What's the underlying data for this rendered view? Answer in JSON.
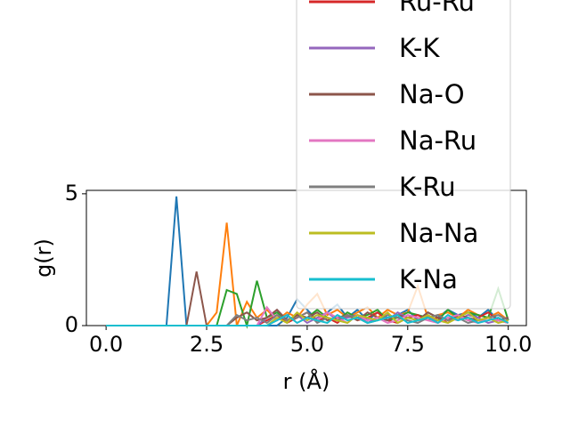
{
  "chart_data": {
    "type": "line",
    "ylabel": "g(r)",
    "xlabel": "r (Å)",
    "x": [
      0,
      0.25,
      0.5,
      0.75,
      1,
      1.25,
      1.5,
      1.75,
      2,
      2.25,
      2.5,
      2.75,
      3,
      3.25,
      3.5,
      3.75,
      4,
      4.25,
      4.5,
      4.75,
      5,
      5.25,
      5.5,
      5.75,
      6,
      6.25,
      6.5,
      6.75,
      7,
      7.25,
      7.5,
      7.75,
      8,
      8.25,
      8.5,
      8.75,
      9,
      9.25,
      9.5,
      9.75,
      10
    ],
    "xlim": [
      -0.49,
      10.45
    ],
    "ylim": [
      0,
      5.13
    ],
    "xticks": [
      {
        "value": 0,
        "label": "0.0"
      },
      {
        "value": 2.5,
        "label": "2.5"
      },
      {
        "value": 5,
        "label": "5.0"
      },
      {
        "value": 7.5,
        "label": "7.5"
      },
      {
        "value": 10,
        "label": "10.0"
      }
    ],
    "yticks": [
      0,
      5
    ],
    "series": [
      {
        "color": "#1f77b4",
        "values": [
          0,
          0,
          0,
          0,
          0,
          0,
          0,
          4.9,
          0,
          0,
          0,
          0,
          0,
          0,
          0,
          0,
          0,
          0,
          0.3,
          1.0,
          0.6,
          0.2,
          0.5,
          0.8,
          0.3,
          0.6,
          0.2,
          0.5,
          0.3,
          0.4,
          0.6,
          0.2,
          0.5,
          0.3,
          0.6,
          0.4,
          0.5,
          0.3,
          0.6,
          0.2,
          0.3
        ]
      },
      {
        "color": "#ff7f0e",
        "values": [
          0,
          0,
          0,
          0,
          0,
          0,
          0,
          0,
          0,
          0,
          0,
          0.5,
          3.9,
          0,
          0.9,
          0.3,
          0.6,
          0.2,
          0.5,
          0.3,
          0.8,
          1.2,
          0.4,
          0.6,
          0.3,
          0.5,
          0.7,
          0.3,
          0.6,
          0.4,
          0.5,
          1.5,
          0.3,
          0.4,
          0.5,
          0.3,
          0.6,
          0.4,
          0.3,
          0.5,
          0.2
        ]
      },
      {
        "color": "#2ca02c",
        "values": [
          0,
          0,
          0,
          0,
          0,
          0,
          0,
          0,
          0,
          0,
          0,
          0,
          1.35,
          1.2,
          0,
          1.7,
          0.3,
          0.5,
          0.2,
          0.4,
          0.3,
          0.6,
          0.3,
          0.2,
          0.5,
          0.3,
          0.4,
          0.6,
          0.2,
          0.3,
          0.5,
          0.4,
          0.3,
          0.2,
          0.6,
          0.3,
          0.5,
          0.4,
          0.3,
          1.4,
          0.2
        ]
      },
      {
        "name": "Ru-Ru",
        "color": "#d62728",
        "values": [
          0,
          0,
          0,
          0,
          0,
          0,
          0,
          0,
          0,
          0,
          0,
          0,
          0,
          0,
          0,
          0,
          0.2,
          0.4,
          0.1,
          0.3,
          0.5,
          0.2,
          0.3,
          0.1,
          0.4,
          0.2,
          0.3,
          0.5,
          0.2,
          0.1,
          0.3,
          0.4,
          0.2,
          0.3,
          0.1,
          0.4,
          0.2,
          0.3,
          0.5,
          0.2,
          0.1
        ]
      },
      {
        "name": "K-K",
        "color": "#9467bd",
        "values": [
          0,
          0,
          0,
          0,
          0,
          0,
          0,
          0,
          0,
          0,
          0,
          0,
          0,
          0,
          0,
          0,
          0.3,
          0.6,
          0.2,
          0.4,
          0.1,
          0.3,
          0.5,
          0.2,
          0.3,
          0.4,
          0.1,
          0.3,
          0.2,
          0.5,
          0.3,
          0.2,
          0.4,
          0.1,
          0.3,
          0.2,
          0.4,
          0.3,
          0.1,
          0.2,
          0.3
        ]
      },
      {
        "name": "Na-O",
        "color": "#8c564b",
        "values": [
          0,
          0,
          0,
          0,
          0,
          0,
          0,
          0,
          0,
          2.05,
          0,
          0,
          0,
          0.3,
          0.5,
          0.2,
          0.3,
          0.6,
          0.2,
          0.4,
          0.3,
          0.5,
          0.2,
          0.3,
          0.4,
          0.2,
          0.5,
          0.3,
          0.2,
          0.4,
          0.3,
          0.2,
          0.5,
          0.3,
          0.2,
          0.4,
          0.3,
          0.2,
          0.3,
          0.2,
          0.3
        ]
      },
      {
        "name": "Na-Ru",
        "color": "#e377c2",
        "values": [
          0,
          0,
          0,
          0,
          0,
          0,
          0,
          0,
          0,
          0,
          0,
          0,
          0,
          0,
          0,
          0,
          0.7,
          0.2,
          0.4,
          0.1,
          0.3,
          0.2,
          0.5,
          0.3,
          0.1,
          0.4,
          0.2,
          0.3,
          0.1,
          0.2,
          0.4,
          0.3,
          0.2,
          0.1,
          0.3,
          0.4,
          0.2,
          0.1,
          0.3,
          0.2,
          0.1
        ]
      },
      {
        "name": "K-Ru",
        "color": "#7f7f7f",
        "values": [
          0,
          0,
          0,
          0,
          0,
          0,
          0,
          0,
          0,
          0,
          0,
          0,
          0,
          0.4,
          0.2,
          0.3,
          0.1,
          0.4,
          0.2,
          0.3,
          0.5,
          0.1,
          0.3,
          0.2,
          0.4,
          0.3,
          0.1,
          0.2,
          0.4,
          0.3,
          0.2,
          0.1,
          0.3,
          0.4,
          0.2,
          0.3,
          0.1,
          0.2,
          0.3,
          0.4,
          0.2
        ]
      },
      {
        "name": "Na-Na",
        "color": "#bcbd22",
        "values": [
          0,
          0,
          0,
          0,
          0,
          0,
          0,
          0,
          0,
          0,
          0,
          0,
          0,
          0,
          0,
          0,
          0,
          0.3,
          0.1,
          0.5,
          0.2,
          0.4,
          0.3,
          0.2,
          0.1,
          0.4,
          0.3,
          0.2,
          0.5,
          0.1,
          0.3,
          0.2,
          0.4,
          0.2,
          0.1,
          0.3,
          0.5,
          0.2,
          0.3,
          0.1,
          0.2
        ]
      },
      {
        "name": "K-Na",
        "color": "#17becf",
        "values": [
          0,
          0,
          0,
          0,
          0,
          0,
          0,
          0,
          0,
          0,
          0,
          0,
          0,
          0,
          0,
          0,
          0,
          0.2,
          0.4,
          0.1,
          0.3,
          0.2,
          0.1,
          0.4,
          0.2,
          0.3,
          0.1,
          0.2,
          0.3,
          0.4,
          0.1,
          0.2,
          0.3,
          0.1,
          0.4,
          0.2,
          0.3,
          0.1,
          0.2,
          0.3,
          0.1
        ]
      }
    ]
  }
}
